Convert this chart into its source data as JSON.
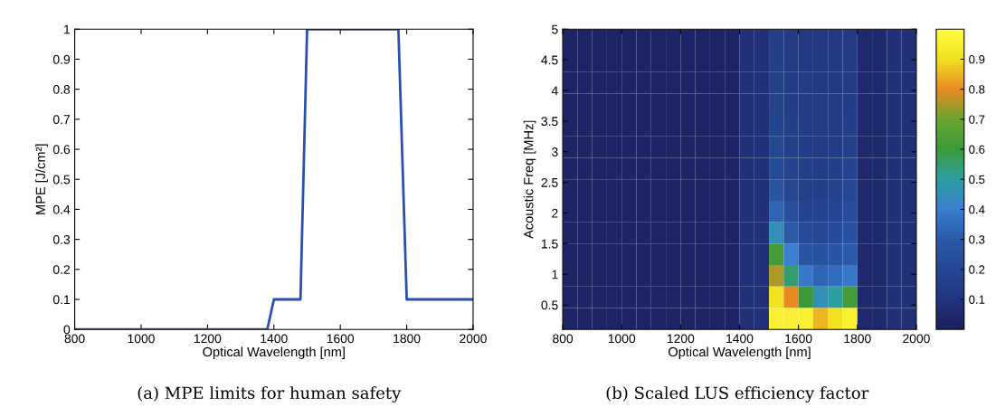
{
  "chart_data": [
    {
      "type": "line",
      "xlabel": "Optical Wavelength [nm]",
      "ylabel": "MPE [J/cm²]",
      "x": [
        800,
        1380,
        1400,
        1480,
        1500,
        1775,
        1800,
        2000
      ],
      "series": [
        {
          "color": "#2a4fb0",
          "values": [
            0,
            0,
            0.1,
            0.1,
            1,
            1,
            0.1,
            0.1
          ]
        }
      ],
      "xlim": [
        800,
        2000
      ],
      "xticks": [
        800,
        1000,
        1200,
        1400,
        1600,
        1800,
        2000
      ],
      "ylim": [
        0,
        1
      ],
      "yticks": [
        0,
        0.1,
        0.2,
        0.3,
        0.4,
        0.5,
        0.6,
        0.7,
        0.8,
        0.9,
        1
      ],
      "annotations": [
        "(a) MPE limits for human safety"
      ]
    },
    {
      "type": "heatmap",
      "xlabel": "Optical Wavelength [nm]",
      "ylabel": "Acoustic Freq [MHz]",
      "x": [
        825,
        875,
        925,
        975,
        1025,
        1075,
        1125,
        1175,
        1225,
        1275,
        1325,
        1375,
        1425,
        1475,
        1525,
        1575,
        1625,
        1675,
        1725,
        1775,
        1825,
        1875,
        1925,
        1975
      ],
      "y": [
        4.825,
        4.475,
        4.125,
        3.775,
        3.425,
        3.075,
        2.725,
        2.375,
        2.025,
        1.675,
        1.325,
        0.975,
        0.625,
        0.275
      ],
      "cells": [
        [
          0.03,
          0.03,
          0.03,
          0.03,
          0.03,
          0.03,
          0.03,
          0.03,
          0.03,
          0.03,
          0.03,
          0.03,
          0.08,
          0.08,
          0.15,
          0.13,
          0.12,
          0.12,
          0.12,
          0.13,
          0.05,
          0.05,
          0.08,
          0.08
        ],
        [
          0.03,
          0.03,
          0.03,
          0.03,
          0.03,
          0.03,
          0.03,
          0.03,
          0.03,
          0.03,
          0.03,
          0.03,
          0.08,
          0.08,
          0.15,
          0.13,
          0.12,
          0.12,
          0.12,
          0.13,
          0.05,
          0.05,
          0.08,
          0.08
        ],
        [
          0.03,
          0.03,
          0.03,
          0.03,
          0.03,
          0.03,
          0.03,
          0.03,
          0.03,
          0.03,
          0.03,
          0.03,
          0.08,
          0.08,
          0.16,
          0.14,
          0.13,
          0.12,
          0.12,
          0.13,
          0.05,
          0.05,
          0.08,
          0.08
        ],
        [
          0.03,
          0.03,
          0.03,
          0.03,
          0.03,
          0.03,
          0.03,
          0.03,
          0.03,
          0.03,
          0.03,
          0.03,
          0.08,
          0.08,
          0.17,
          0.14,
          0.13,
          0.13,
          0.13,
          0.14,
          0.05,
          0.05,
          0.08,
          0.08
        ],
        [
          0.03,
          0.03,
          0.03,
          0.03,
          0.03,
          0.03,
          0.03,
          0.03,
          0.03,
          0.03,
          0.03,
          0.03,
          0.08,
          0.08,
          0.18,
          0.15,
          0.14,
          0.13,
          0.13,
          0.15,
          0.05,
          0.05,
          0.08,
          0.08
        ],
        [
          0.03,
          0.03,
          0.03,
          0.03,
          0.03,
          0.03,
          0.03,
          0.03,
          0.03,
          0.03,
          0.03,
          0.03,
          0.08,
          0.08,
          0.2,
          0.16,
          0.14,
          0.13,
          0.14,
          0.16,
          0.05,
          0.05,
          0.08,
          0.08
        ],
        [
          0.03,
          0.03,
          0.03,
          0.03,
          0.03,
          0.03,
          0.03,
          0.03,
          0.03,
          0.03,
          0.03,
          0.03,
          0.08,
          0.08,
          0.22,
          0.18,
          0.15,
          0.14,
          0.15,
          0.18,
          0.05,
          0.05,
          0.08,
          0.08
        ],
        [
          0.03,
          0.03,
          0.03,
          0.03,
          0.03,
          0.03,
          0.03,
          0.03,
          0.03,
          0.03,
          0.03,
          0.03,
          0.08,
          0.08,
          0.27,
          0.2,
          0.16,
          0.15,
          0.17,
          0.2,
          0.05,
          0.05,
          0.08,
          0.08
        ],
        [
          0.03,
          0.03,
          0.03,
          0.03,
          0.03,
          0.03,
          0.03,
          0.03,
          0.03,
          0.03,
          0.03,
          0.03,
          0.08,
          0.08,
          0.33,
          0.24,
          0.18,
          0.17,
          0.19,
          0.23,
          0.05,
          0.05,
          0.08,
          0.08
        ],
        [
          0.03,
          0.03,
          0.03,
          0.03,
          0.03,
          0.03,
          0.03,
          0.03,
          0.03,
          0.03,
          0.03,
          0.03,
          0.08,
          0.08,
          0.45,
          0.3,
          0.22,
          0.2,
          0.22,
          0.26,
          0.05,
          0.05,
          0.08,
          0.08
        ],
        [
          0.03,
          0.03,
          0.03,
          0.03,
          0.03,
          0.03,
          0.03,
          0.03,
          0.03,
          0.03,
          0.03,
          0.03,
          0.08,
          0.08,
          0.62,
          0.4,
          0.28,
          0.25,
          0.27,
          0.3,
          0.05,
          0.05,
          0.08,
          0.08
        ],
        [
          0.03,
          0.03,
          0.03,
          0.03,
          0.03,
          0.03,
          0.03,
          0.03,
          0.03,
          0.03,
          0.03,
          0.03,
          0.08,
          0.08,
          0.75,
          0.55,
          0.38,
          0.33,
          0.35,
          0.38,
          0.05,
          0.05,
          0.08,
          0.08
        ],
        [
          0.03,
          0.03,
          0.03,
          0.03,
          0.03,
          0.03,
          0.03,
          0.03,
          0.03,
          0.03,
          0.03,
          0.03,
          0.08,
          0.08,
          0.9,
          0.8,
          0.6,
          0.45,
          0.5,
          0.62,
          0.05,
          0.05,
          0.08,
          0.08
        ],
        [
          0.03,
          0.03,
          0.03,
          0.03,
          0.03,
          0.03,
          0.03,
          0.03,
          0.03,
          0.03,
          0.03,
          0.03,
          0.08,
          0.08,
          0.95,
          0.95,
          0.95,
          0.85,
          0.9,
          0.95,
          0.05,
          0.05,
          0.08,
          0.08
        ]
      ],
      "xlim": [
        800,
        2000
      ],
      "xticks": [
        800,
        1000,
        1200,
        1400,
        1600,
        1800,
        2000
      ],
      "ylim": [
        0.1,
        5
      ],
      "yticks": [
        0.5,
        1,
        1.5,
        2,
        2.5,
        3,
        3.5,
        4,
        4.5,
        5
      ],
      "clim": [
        0,
        1
      ],
      "cticks": [
        0.1,
        0.2,
        0.3,
        0.4,
        0.5,
        0.6,
        0.7,
        0.8,
        0.9
      ],
      "annotations": [
        "(b) Scaled LUS efficiency factor"
      ]
    }
  ]
}
